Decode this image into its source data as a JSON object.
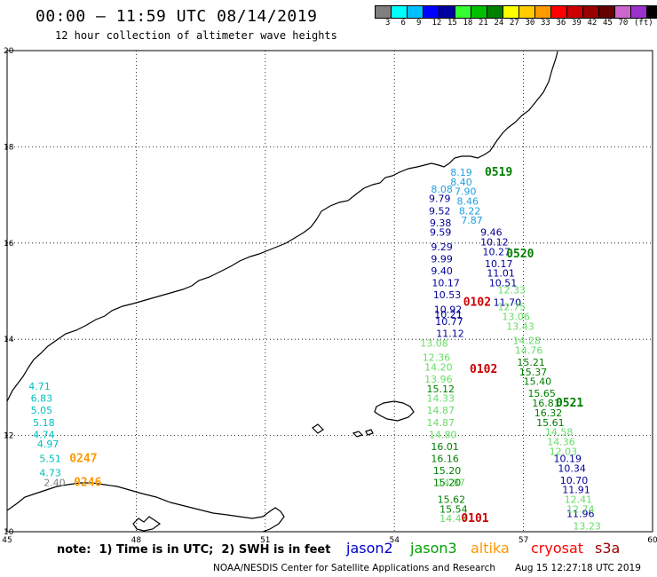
{
  "title": "00:00 — 11:59 UTC 08/14/2019",
  "subtitle": "12 hour collection of altimeter wave heights",
  "colorbar": {
    "colors": [
      "#7f7f7f",
      "#00ffff",
      "#00bfff",
      "#0000ff",
      "#0000a0",
      "#33ff33",
      "#00c000",
      "#008000",
      "#ffff00",
      "#ffcc00",
      "#ff9900",
      "#ff0000",
      "#cc0000",
      "#990000",
      "#660000",
      "#cc66cc",
      "#9933cc",
      "#000000"
    ],
    "labels": [
      "3",
      "6",
      "9",
      "12",
      "15",
      "18",
      "21",
      "24",
      "27",
      "30",
      "33",
      "36",
      "39",
      "42",
      "45",
      "70",
      "(ft)"
    ]
  },
  "axes": {
    "x_ticks": [
      "45",
      "48",
      "51",
      "54",
      "57",
      "60"
    ],
    "y_ticks": [
      "20",
      "18",
      "16",
      "14",
      "12",
      "10"
    ]
  },
  "tracks": [
    {
      "satellite": "jason2",
      "color": "#1f9fdf",
      "points": [
        {
          "lon": 55.3,
          "lat": 17.4,
          "v": "8.19"
        },
        {
          "lon": 55.3,
          "lat": 17.2,
          "v": "8.40"
        },
        {
          "lon": 55.4,
          "lat": 17.0,
          "v": "7.90"
        },
        {
          "lon": 55.45,
          "lat": 16.8,
          "v": "8.46"
        },
        {
          "lon": 55.5,
          "lat": 16.6,
          "v": "8.22"
        },
        {
          "lon": 55.55,
          "lat": 16.4,
          "v": "7.87"
        },
        {
          "lon": 54.85,
          "lat": 17.05,
          "v": "8.08"
        }
      ]
    },
    {
      "satellite": "jason2",
      "color": "#000099",
      "points": [
        {
          "lon": 54.8,
          "lat": 16.85,
          "v": "9.79"
        },
        {
          "lon": 54.8,
          "lat": 16.6,
          "v": "9.52"
        },
        {
          "lon": 54.82,
          "lat": 16.35,
          "v": "9.38"
        },
        {
          "lon": 54.82,
          "lat": 16.15,
          "v": "9.59"
        },
        {
          "lon": 54.85,
          "lat": 15.85,
          "v": "9.29"
        },
        {
          "lon": 54.85,
          "lat": 15.6,
          "v": "9.99"
        },
        {
          "lon": 54.85,
          "lat": 15.35,
          "v": "9.40"
        },
        {
          "lon": 54.87,
          "lat": 15.1,
          "v": "10.17"
        },
        {
          "lon": 54.9,
          "lat": 14.85,
          "v": "10.53"
        },
        {
          "lon": 54.92,
          "lat": 14.55,
          "v": "10.92"
        },
        {
          "lon": 54.93,
          "lat": 14.45,
          "v": "10.21"
        },
        {
          "lon": 54.95,
          "lat": 14.3,
          "v": "10.77"
        },
        {
          "lon": 54.97,
          "lat": 14.05,
          "v": "11.12"
        },
        {
          "lon": 56.0,
          "lat": 16.15,
          "v": "9.46"
        },
        {
          "lon": 56.0,
          "lat": 15.95,
          "v": "10.12"
        },
        {
          "lon": 56.05,
          "lat": 15.75,
          "v": "10.27"
        },
        {
          "lon": 56.1,
          "lat": 15.5,
          "v": "10.17"
        },
        {
          "lon": 56.15,
          "lat": 15.3,
          "v": "11.01"
        },
        {
          "lon": 56.2,
          "lat": 15.1,
          "v": "10.51"
        },
        {
          "lon": 56.3,
          "lat": 14.7,
          "v": "11.70"
        },
        {
          "lon": 57.7,
          "lat": 11.45,
          "v": "10.19"
        },
        {
          "lon": 57.8,
          "lat": 11.25,
          "v": "10.34"
        },
        {
          "lon": 57.85,
          "lat": 11.0,
          "v": "10.70"
        },
        {
          "lon": 57.9,
          "lat": 10.8,
          "v": "11.91"
        },
        {
          "lon": 58.0,
          "lat": 10.3,
          "v": "11.96"
        }
      ]
    },
    {
      "satellite": "jason3",
      "color": "#66dd66",
      "points": [
        {
          "lon": 56.4,
          "lat": 14.95,
          "v": "12.33"
        },
        {
          "lon": 56.4,
          "lat": 14.6,
          "v": "12.75"
        },
        {
          "lon": 56.5,
          "lat": 14.4,
          "v": "13.06"
        },
        {
          "lon": 56.6,
          "lat": 14.2,
          "v": "13.43"
        },
        {
          "lon": 56.75,
          "lat": 13.9,
          "v": "14.28"
        },
        {
          "lon": 56.8,
          "lat": 13.7,
          "v": "14.76"
        },
        {
          "lon": 54.6,
          "lat": 13.85,
          "v": "13.08"
        },
        {
          "lon": 54.65,
          "lat": 13.55,
          "v": "12.36"
        },
        {
          "lon": 54.7,
          "lat": 13.35,
          "v": "14.20"
        },
        {
          "lon": 54.7,
          "lat": 13.1,
          "v": "13.96"
        },
        {
          "lon": 54.75,
          "lat": 12.7,
          "v": "14.33"
        },
        {
          "lon": 54.75,
          "lat": 12.45,
          "v": "14.87"
        },
        {
          "lon": 54.75,
          "lat": 12.2,
          "v": "14.87"
        },
        {
          "lon": 54.8,
          "lat": 11.95,
          "v": "14.80"
        },
        {
          "lon": 55.0,
          "lat": 10.95,
          "v": "14.87"
        },
        {
          "lon": 55.05,
          "lat": 10.2,
          "v": "14.47"
        },
        {
          "lon": 57.5,
          "lat": 12.0,
          "v": "14.58"
        },
        {
          "lon": 57.55,
          "lat": 11.8,
          "v": "14.36"
        },
        {
          "lon": 57.6,
          "lat": 11.6,
          "v": "12.03"
        },
        {
          "lon": 57.95,
          "lat": 10.6,
          "v": "12.41"
        },
        {
          "lon": 58.0,
          "lat": 10.4,
          "v": "12.74"
        },
        {
          "lon": 58.15,
          "lat": 10.05,
          "v": "13.23"
        }
      ]
    },
    {
      "satellite": "jason3",
      "color": "#008000",
      "points": [
        {
          "lon": 56.85,
          "lat": 13.45,
          "v": "15.21"
        },
        {
          "lon": 56.9,
          "lat": 13.25,
          "v": "15.37"
        },
        {
          "lon": 57.0,
          "lat": 13.05,
          "v": "15.40"
        },
        {
          "lon": 57.1,
          "lat": 12.8,
          "v": "15.65"
        },
        {
          "lon": 57.2,
          "lat": 12.6,
          "v": "16.81"
        },
        {
          "lon": 57.25,
          "lat": 12.4,
          "v": "16.32"
        },
        {
          "lon": 57.3,
          "lat": 12.2,
          "v": "15.61"
        },
        {
          "lon": 54.75,
          "lat": 12.9,
          "v": "15.12"
        },
        {
          "lon": 54.85,
          "lat": 11.7,
          "v": "16.01"
        },
        {
          "lon": 54.85,
          "lat": 11.45,
          "v": "16.16"
        },
        {
          "lon": 54.9,
          "lat": 11.2,
          "v": "15.20"
        },
        {
          "lon": 54.9,
          "lat": 10.95,
          "v": "15.20"
        },
        {
          "lon": 55.0,
          "lat": 10.6,
          "v": "15.62"
        },
        {
          "lon": 55.05,
          "lat": 10.4,
          "v": "15.54"
        }
      ]
    },
    {
      "satellite": "altika",
      "color": "#00bfbf",
      "points": [
        {
          "lon": 45.5,
          "lat": 12.95,
          "v": "4.71"
        },
        {
          "lon": 45.55,
          "lat": 12.7,
          "v": "6.83"
        },
        {
          "lon": 45.55,
          "lat": 12.45,
          "v": "5.05"
        },
        {
          "lon": 45.6,
          "lat": 12.2,
          "v": "5.18"
        },
        {
          "lon": 45.6,
          "lat": 11.95,
          "v": "4.74"
        },
        {
          "lon": 45.7,
          "lat": 11.75,
          "v": "4.97"
        },
        {
          "lon": 45.75,
          "lat": 11.45,
          "v": "5.51"
        },
        {
          "lon": 45.75,
          "lat": 11.15,
          "v": "4.73"
        }
      ]
    },
    {
      "satellite": "altika",
      "color": "#808080",
      "points": [
        {
          "lon": 45.85,
          "lat": 10.95,
          "v": "2.40"
        }
      ]
    }
  ],
  "labels_time": [
    {
      "lon": 56.1,
      "lat": 17.4,
      "text": "0519",
      "color": "#008000"
    },
    {
      "lon": 56.6,
      "lat": 15.7,
      "text": "0520",
      "color": "#008000"
    },
    {
      "lon": 55.6,
      "lat": 14.7,
      "text": "0102",
      "color": "#cc0000"
    },
    {
      "lon": 55.75,
      "lat": 13.3,
      "text": "0102",
      "color": "#cc0000"
    },
    {
      "lon": 57.75,
      "lat": 12.6,
      "text": "0521",
      "color": "#008000"
    },
    {
      "lon": 46.45,
      "lat": 11.45,
      "text": "0247",
      "color": "#ff9900"
    },
    {
      "lon": 46.55,
      "lat": 10.95,
      "text": "0246",
      "color": "#ff9900"
    },
    {
      "lon": 55.55,
      "lat": 10.2,
      "text": "0101",
      "color": "#cc0000"
    }
  ],
  "footer": {
    "note": "note:  1) Time is in UTC;  2) SWH is in feet",
    "credit": "NOAA/NESDIS Center for Satellite Applications and Research",
    "time": "Aug 15 12:27:18 UTC 2019"
  },
  "legend": [
    {
      "name": "jason2",
      "color": "#0000cc"
    },
    {
      "name": "jason3",
      "color": "#00a000"
    },
    {
      "name": "altika",
      "color": "#ff9900"
    },
    {
      "name": "cryosat",
      "color": "#ff0000"
    },
    {
      "name": "s3a",
      "color": "#990000"
    }
  ]
}
